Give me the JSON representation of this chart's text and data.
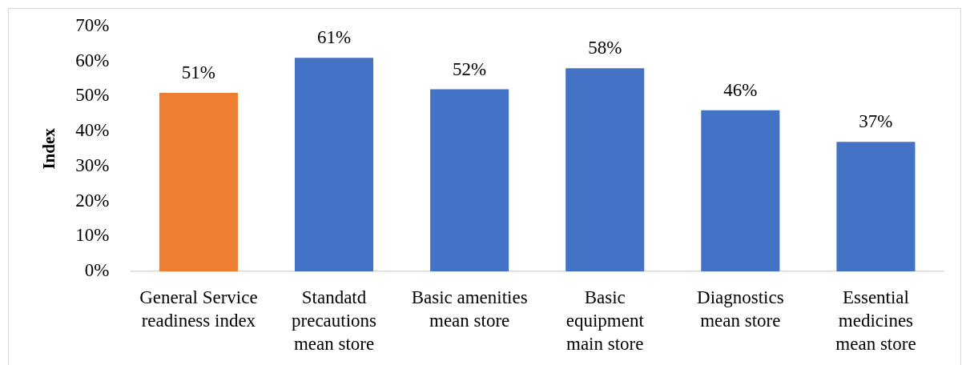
{
  "chart_data": {
    "type": "bar",
    "ylabel": "Index",
    "categories": [
      "General Service\nreadiness index",
      "Standatd\nprecautions\nmean store",
      "Basic amenities\nmean store",
      "Basic\nequipment\nmain store",
      "Diagnostics\nmean store",
      "Essential\nmedicines\nmean store"
    ],
    "values": [
      51,
      61,
      52,
      58,
      46,
      37
    ],
    "colors": [
      "#ed7d31",
      "#4472c4",
      "#4472c4",
      "#4472c4",
      "#4472c4",
      "#4472c4"
    ],
    "value_labels": [
      "51%",
      "61%",
      "52%",
      "58%",
      "46%",
      "37%"
    ],
    "ylim": [
      0,
      70
    ],
    "yticks": [
      {
        "value": 0,
        "label": "0%"
      },
      {
        "value": 10,
        "label": "10%"
      },
      {
        "value": 20,
        "label": "20%"
      },
      {
        "value": 30,
        "label": "30%"
      },
      {
        "value": 40,
        "label": "40%"
      },
      {
        "value": 50,
        "label": "50%"
      },
      {
        "value": 60,
        "label": "60%"
      },
      {
        "value": 70,
        "label": "70%"
      }
    ]
  }
}
